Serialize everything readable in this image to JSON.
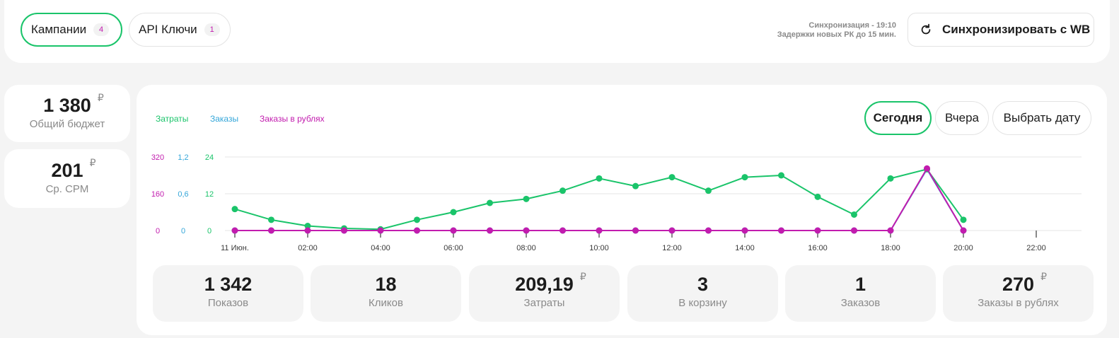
{
  "tabs": [
    {
      "label": "Кампании",
      "count": "4"
    },
    {
      "label": "API Ключи",
      "count": "1"
    }
  ],
  "sync": {
    "line1": "Синхронизация - 19:10",
    "line2": "Задержки новых РК до 15 мин.",
    "button_label": "Синхронизировать с WB"
  },
  "currency": "₽",
  "side_stats": [
    {
      "value": "1 380",
      "label": "Общий бюджет",
      "currency": true
    },
    {
      "value": "201",
      "label": "Ср. CPM",
      "currency": true
    }
  ],
  "period": {
    "buttons": [
      "Сегодня",
      "Вчера",
      "Выбрать дату"
    ],
    "selected": "Сегодня"
  },
  "bottom_stats": [
    {
      "value": "1 342",
      "label": "Показов",
      "currency": false
    },
    {
      "value": "18",
      "label": "Кликов",
      "currency": false
    },
    {
      "value": "209,19",
      "label": "Затраты",
      "currency": true
    },
    {
      "value": "3",
      "label": "В корзину",
      "currency": false
    },
    {
      "value": "1",
      "label": "Заказов",
      "currency": false
    },
    {
      "value": "270",
      "label": "Заказы в рублях",
      "currency": true
    }
  ],
  "colors": {
    "costs": "#1ac46a",
    "orders": "#34a6d9",
    "orders_rub": "#c21cae",
    "accent": "#1ac46a"
  },
  "chart_data": {
    "type": "line",
    "legend": [
      "Затраты",
      "Заказы",
      "Заказы в рублях"
    ],
    "x": [
      "00:00",
      "01:00",
      "02:00",
      "03:00",
      "04:00",
      "05:00",
      "06:00",
      "07:00",
      "08:00",
      "09:00",
      "10:00",
      "11:00",
      "12:00",
      "13:00",
      "14:00",
      "15:00",
      "16:00",
      "17:00",
      "18:00",
      "19:00",
      "20:00"
    ],
    "x_tick_labels": [
      "11 Июн.",
      "02:00",
      "04:00",
      "06:00",
      "08:00",
      "10:00",
      "12:00",
      "14:00",
      "16:00",
      "18:00",
      "20:00",
      "22:00"
    ],
    "axes": {
      "costs": {
        "ticks": [
          "0",
          "12",
          "24"
        ],
        "range": [
          0,
          24
        ]
      },
      "orders": {
        "ticks": [
          "0",
          "0,6",
          "1,2"
        ],
        "range": [
          0,
          1.2
        ]
      },
      "orders_rub": {
        "ticks": [
          "0",
          "160",
          "320"
        ],
        "range": [
          0,
          320
        ]
      }
    },
    "series": [
      {
        "name": "Затраты",
        "axis": "costs",
        "values": [
          7,
          3.5,
          1.5,
          0.7,
          0.4,
          3.5,
          6,
          9,
          10.3,
          13,
          17,
          14.5,
          17.4,
          13,
          17.4,
          18,
          11,
          5.2,
          17,
          20,
          3.5
        ]
      },
      {
        "name": "Заказы",
        "axis": "orders",
        "values": [
          0,
          0,
          0,
          0,
          0,
          0,
          0,
          0,
          0,
          0,
          0,
          0,
          0,
          0,
          0,
          0,
          0,
          0,
          0,
          1,
          0
        ]
      },
      {
        "name": "Заказы в рублях",
        "axis": "orders_rub",
        "values": [
          0,
          0,
          0,
          0,
          0,
          0,
          0,
          0,
          0,
          0,
          0,
          0,
          0,
          0,
          0,
          0,
          0,
          0,
          0,
          270,
          0
        ]
      }
    ],
    "grid": true
  }
}
